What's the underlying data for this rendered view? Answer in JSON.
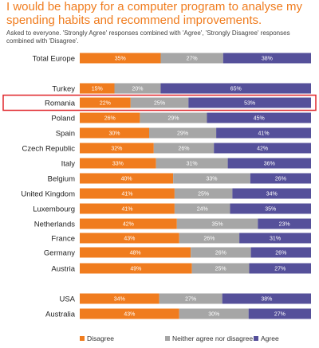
{
  "title": "I would be happy for a computer program to analyse my spending habits and recommend improvements.",
  "subtitle": "Asked to everyone. 'Strongly Agree' responses combined with 'Agree', 'Strongly Disagree' responses combined with 'Disagree'.",
  "colors": {
    "disagree": "#f07c1e",
    "neither": "#a6a6a6",
    "agree": "#55509a",
    "highlight": "#e0262b"
  },
  "chart_data": {
    "type": "bar",
    "orientation": "horizontal",
    "stacked": true,
    "categories": [
      "Total Europe",
      "Turkey",
      "Romania",
      "Poland",
      "Spain",
      "Czech Republic",
      "Italy",
      "Belgium",
      "United Kingdom",
      "Luxembourg",
      "Netherlands",
      "France",
      "Germany",
      "Austria",
      "USA",
      "Australia"
    ],
    "series": [
      {
        "name": "Disagree",
        "values": [
          35,
          15,
          22,
          26,
          30,
          32,
          33,
          40,
          41,
          41,
          42,
          43,
          48,
          49,
          34,
          43
        ],
        "labels": [
          "35%",
          "15%",
          "22%",
          "26%",
          "30%",
          "32%",
          "33%",
          "40%",
          "41%",
          "41%",
          "42%",
          "43%",
          "48%",
          "49%",
          "34%",
          "43%"
        ]
      },
      {
        "name": "Neither agree nor disagree",
        "values": [
          27,
          20,
          25,
          29,
          29,
          26,
          31,
          33,
          25,
          24,
          35,
          26,
          26,
          25,
          27,
          30
        ],
        "labels": [
          "27%",
          "20%",
          "25%",
          "29%",
          "29%",
          "26%",
          "31%",
          "33%",
          "25%",
          "24%",
          "35%",
          "26%",
          "26%",
          "25%",
          "27%",
          "30%"
        ]
      },
      {
        "name": "Agree",
        "values": [
          38,
          65,
          53,
          45,
          41,
          42,
          36,
          26,
          34,
          35,
          23,
          31,
          26,
          27,
          38,
          27
        ],
        "labels": [
          "38%",
          "65%",
          "53%",
          "45%",
          "41%",
          "42%",
          "36%",
          "26%",
          "34%",
          "35%",
          "23%",
          "31%",
          "26%",
          "27%",
          "38%",
          "27%"
        ]
      }
    ],
    "highlighted_category": "Romania",
    "legend_position": "bottom",
    "xlim": [
      0,
      100
    ],
    "grid": false
  }
}
